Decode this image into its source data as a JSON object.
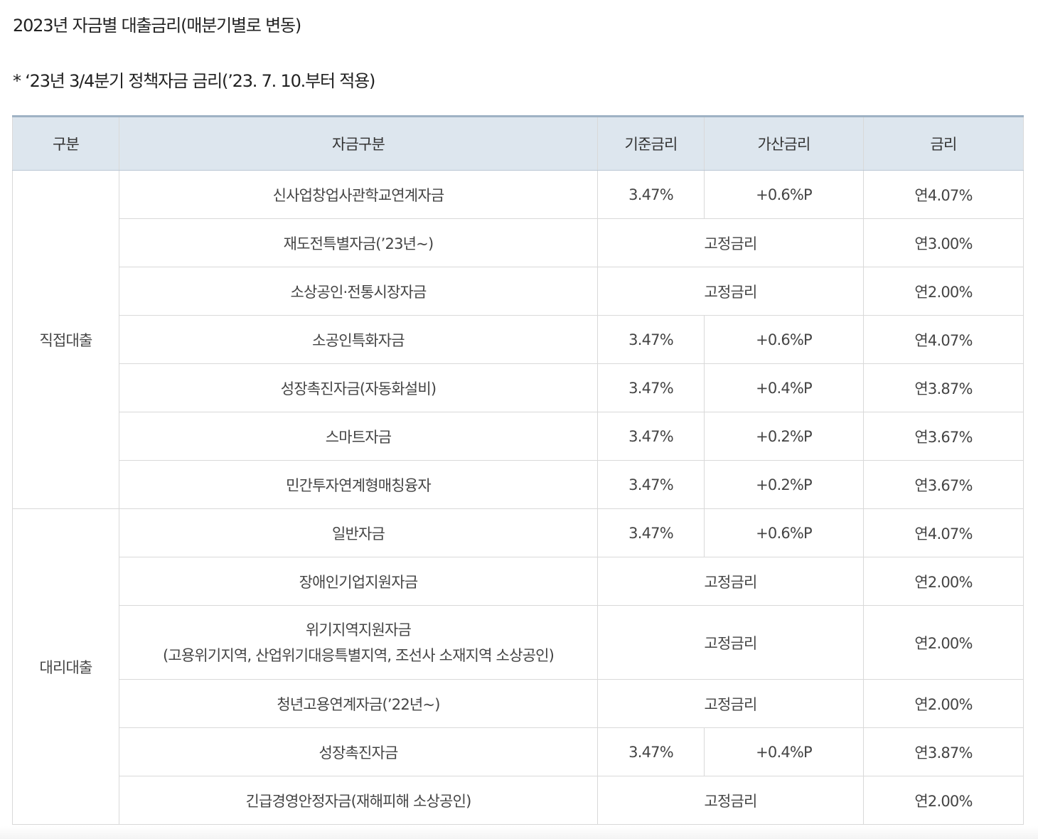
{
  "title": "2023년 자금별 대출금리(매분기별로 변동)",
  "note": "* ‘23년 3/4분기 정책자금 금리(’23. 7. 10.부터 적용)",
  "table": {
    "headers": [
      "구분",
      "자금구분",
      "기준금리",
      "가산금리",
      "금리"
    ],
    "groups": [
      {
        "label": "직접대출",
        "rows": [
          {
            "fund": "신사업창업사관학교연계자금",
            "base": "3.47%",
            "add": "+0.6%P",
            "rate": "연4.07%"
          },
          {
            "fund": "재도전특별자금(’23년~)",
            "fixed": "고정금리",
            "rate": "연3.00%"
          },
          {
            "fund": "소상공인·전통시장자금",
            "fixed": "고정금리",
            "rate": "연2.00%"
          },
          {
            "fund": "소공인특화자금",
            "base": "3.47%",
            "add": "+0.6%P",
            "rate": "연4.07%"
          },
          {
            "fund": "성장촉진자금(자동화설비)",
            "base": "3.47%",
            "add": "+0.4%P",
            "rate": "연3.87%"
          },
          {
            "fund": "스마트자금",
            "base": "3.47%",
            "add": "+0.2%P",
            "rate": "연3.67%"
          },
          {
            "fund": "민간투자연계형매칭융자",
            "base": "3.47%",
            "add": "+0.2%P",
            "rate": "연3.67%"
          }
        ]
      },
      {
        "label": "대리대출",
        "rows": [
          {
            "fund": "일반자금",
            "base": "3.47%",
            "add": "+0.6%P",
            "rate": "연4.07%"
          },
          {
            "fund": "장애인기업지원자금",
            "fixed": "고정금리",
            "rate": "연2.00%"
          },
          {
            "fund": "위기지역지원자금",
            "fund_sub": "(고용위기지역, 산업위기대응특별지역, 조선사 소재지역 소상공인)",
            "fixed": "고정금리",
            "rate": "연2.00%"
          },
          {
            "fund": "청년고용연계자금(’22년~)",
            "fixed": "고정금리",
            "rate": "연2.00%"
          },
          {
            "fund": "성장촉진자금",
            "base": "3.47%",
            "add": "+0.4%P",
            "rate": "연3.87%"
          },
          {
            "fund": "긴급경영안정자금(재해피해 소상공인)",
            "fixed": "고정금리",
            "rate": "연2.00%"
          }
        ]
      }
    ]
  }
}
